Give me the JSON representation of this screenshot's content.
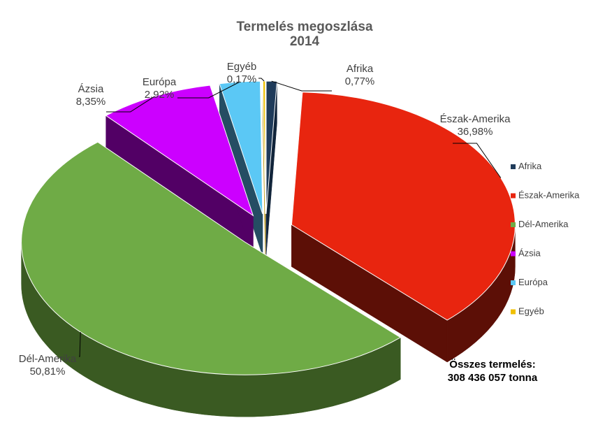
{
  "chart_data": {
    "type": "pie",
    "title": "Termelés megoszlása",
    "subtitle": "2014",
    "categories": [
      "Afrika",
      "Észak-Amerika",
      "Dél-Amerika",
      "Ázsia",
      "Európa",
      "Egyéb"
    ],
    "values": [
      0.77,
      36.98,
      50.81,
      8.35,
      2.92,
      0.17
    ],
    "value_labels": [
      "0,77%",
      "36,98%",
      "50,81%",
      "8,35%",
      "2,92%",
      "0,17%"
    ],
    "colors": [
      "#1f3b5a",
      "#e8250f",
      "#6fab46",
      "#cc00ff",
      "#5bc8f5",
      "#f0c000"
    ],
    "side_colors": [
      "#11243a",
      "#5c0f06",
      "#3a5a22",
      "#520065",
      "#254d63",
      "#b89000"
    ],
    "legend_position": "right",
    "exploded": true,
    "three_d": true
  },
  "annotation": {
    "total_line1": "Összes termelés:",
    "total_line2": "308 436 057 tonna"
  }
}
